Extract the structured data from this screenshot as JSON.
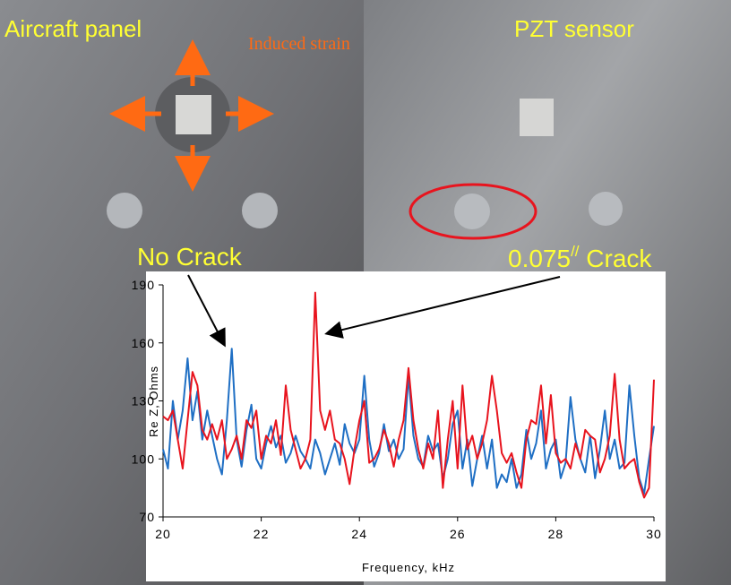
{
  "photo": {
    "left_label": "Aircraft panel",
    "right_label": "PZT sensor",
    "strain_label": "Induced strain"
  },
  "chart_data": {
    "type": "line",
    "xlabel": "Frequency, kHz",
    "ylabel": "Re Z, Ohms",
    "xlim": [
      20,
      30
    ],
    "xticks": [
      20,
      22,
      24,
      26,
      28,
      30
    ],
    "ylim": [
      70,
      190
    ],
    "yticks": [
      70,
      100,
      130,
      160,
      190
    ],
    "grid": false,
    "annotations": [
      {
        "text": "No Crack"
      },
      {
        "text": "0.075",
        "superscript": "//",
        "suffix": " Crack"
      }
    ],
    "x": [
      20.0,
      20.1,
      20.2,
      20.3,
      20.4,
      20.5,
      20.6,
      20.7,
      20.8,
      20.9,
      21.0,
      21.1,
      21.2,
      21.3,
      21.4,
      21.5,
      21.6,
      21.7,
      21.8,
      21.9,
      22.0,
      22.1,
      22.2,
      22.3,
      22.4,
      22.5,
      22.6,
      22.7,
      22.8,
      22.9,
      23.0,
      23.1,
      23.2,
      23.3,
      23.4,
      23.5,
      23.6,
      23.7,
      23.8,
      23.9,
      24.0,
      24.1,
      24.2,
      24.3,
      24.4,
      24.5,
      24.6,
      24.7,
      24.8,
      24.9,
      25.0,
      25.1,
      25.2,
      25.3,
      25.4,
      25.5,
      25.6,
      25.7,
      25.8,
      25.9,
      26.0,
      26.1,
      26.2,
      26.3,
      26.4,
      26.5,
      26.6,
      26.7,
      26.8,
      26.9,
      27.0,
      27.1,
      27.2,
      27.3,
      27.4,
      27.5,
      27.6,
      27.7,
      27.8,
      27.9,
      28.0,
      28.1,
      28.2,
      28.3,
      28.4,
      28.5,
      28.6,
      28.7,
      28.8,
      28.9,
      29.0,
      29.1,
      29.2,
      29.3,
      29.4,
      29.5,
      29.6,
      29.7,
      29.8,
      29.9,
      30.0
    ],
    "series": [
      {
        "color": "#1f6fc4",
        "values": [
          105,
          95,
          130,
          110,
          125,
          152,
          120,
          135,
          110,
          125,
          112,
          100,
          92,
          120,
          157,
          110,
          96,
          115,
          128,
          100,
          95,
          108,
          117,
          106,
          112,
          98,
          103,
          112,
          104,
          100,
          95,
          110,
          103,
          92,
          100,
          108,
          97,
          118,
          108,
          103,
          110,
          143,
          110,
          96,
          103,
          118,
          104,
          110,
          100,
          105,
          143,
          112,
          100,
          96,
          112,
          104,
          108,
          90,
          100,
          118,
          125,
          95,
          110,
          86,
          100,
          112,
          95,
          110,
          85,
          92,
          88,
          100,
          85,
          92,
          115,
          100,
          108,
          125,
          95,
          105,
          110,
          90,
          98,
          132,
          110,
          100,
          93,
          112,
          90,
          105,
          125,
          100,
          110,
          95,
          98,
          138,
          112,
          90,
          82,
          100,
          117
        ]
      },
      {
        "color": "#e8141e",
        "values": [
          122,
          120,
          125,
          110,
          95,
          120,
          145,
          138,
          115,
          110,
          118,
          110,
          120,
          100,
          105,
          112,
          100,
          120,
          116,
          125,
          100,
          112,
          108,
          120,
          102,
          138,
          115,
          105,
          95,
          100,
          110,
          186,
          125,
          115,
          125,
          110,
          108,
          100,
          87,
          105,
          120,
          130,
          98,
          100,
          105,
          115,
          108,
          96,
          110,
          120,
          147,
          120,
          105,
          95,
          108,
          100,
          125,
          85,
          110,
          130,
          95,
          138,
          105,
          112,
          100,
          108,
          120,
          143,
          125,
          103,
          98,
          103,
          93,
          85,
          110,
          120,
          118,
          138,
          108,
          133,
          103,
          98,
          100,
          95,
          108,
          100,
          115,
          112,
          110,
          93,
          100,
          112,
          144,
          110,
          95,
          98,
          100,
          88,
          80,
          85,
          141
        ]
      }
    ]
  }
}
